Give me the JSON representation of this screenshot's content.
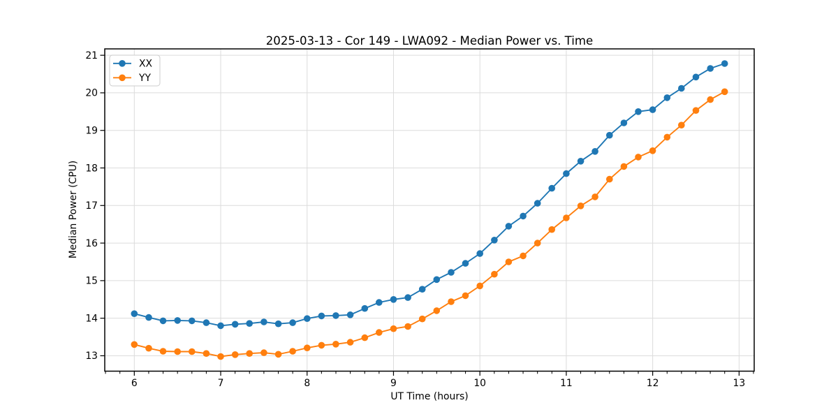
{
  "chart_data": {
    "type": "line",
    "title": "2025-03-13 - Cor 149 - LWA092 - Median Power vs. Time",
    "xlabel": "UT Time (hours)",
    "ylabel": "Median Power (CPU)",
    "xlim": [
      5.658,
      13.175
    ],
    "ylim": [
      12.59,
      21.17
    ],
    "xticks": [
      6,
      7,
      8,
      9,
      10,
      11,
      12,
      13
    ],
    "yticks": [
      13,
      14,
      15,
      16,
      17,
      18,
      19,
      20,
      21
    ],
    "x_minor_step_per_unit": 6,
    "grid": true,
    "legend_position": "upper-left",
    "x": [
      6.0,
      6.167,
      6.333,
      6.5,
      6.667,
      6.833,
      7.0,
      7.167,
      7.333,
      7.5,
      7.667,
      7.833,
      8.0,
      8.167,
      8.333,
      8.5,
      8.667,
      8.833,
      9.0,
      9.167,
      9.333,
      9.5,
      9.667,
      9.833,
      10.0,
      10.167,
      10.333,
      10.5,
      10.667,
      10.833,
      11.0,
      11.167,
      11.333,
      11.5,
      11.667,
      11.833,
      12.0,
      12.167,
      12.333,
      12.5,
      12.667,
      12.833
    ],
    "series": [
      {
        "name": "XX",
        "color": "#1f77b4",
        "values": [
          14.12,
          14.02,
          13.93,
          13.94,
          13.93,
          13.88,
          13.8,
          13.84,
          13.86,
          13.9,
          13.85,
          13.88,
          13.99,
          14.06,
          14.07,
          14.09,
          14.26,
          14.42,
          14.5,
          14.55,
          14.77,
          15.03,
          15.22,
          15.46,
          15.72,
          16.08,
          16.45,
          16.72,
          17.06,
          17.46,
          17.85,
          18.18,
          18.44,
          18.87,
          19.2,
          19.5,
          19.55,
          19.87,
          20.12,
          20.42,
          20.65,
          20.78
        ]
      },
      {
        "name": "YY",
        "color": "#ff7f0e",
        "values": [
          13.3,
          13.2,
          13.12,
          13.11,
          13.11,
          13.06,
          12.98,
          13.03,
          13.06,
          13.08,
          13.04,
          13.12,
          13.21,
          13.28,
          13.31,
          13.36,
          13.48,
          13.62,
          13.72,
          13.78,
          13.98,
          14.2,
          14.44,
          14.6,
          14.86,
          15.17,
          15.5,
          15.66,
          16.0,
          16.36,
          16.67,
          16.99,
          17.23,
          17.7,
          18.04,
          18.29,
          18.46,
          18.82,
          19.14,
          19.53,
          19.82,
          20.03
        ]
      }
    ]
  },
  "styles": {
    "background": "#ffffff",
    "grid_color": "#dcdcdc",
    "spine_color": "#000000",
    "tick_color": "#000000",
    "text_color": "#000000",
    "legend_border_color": "#cccccc",
    "legend_background": "#ffffff"
  }
}
